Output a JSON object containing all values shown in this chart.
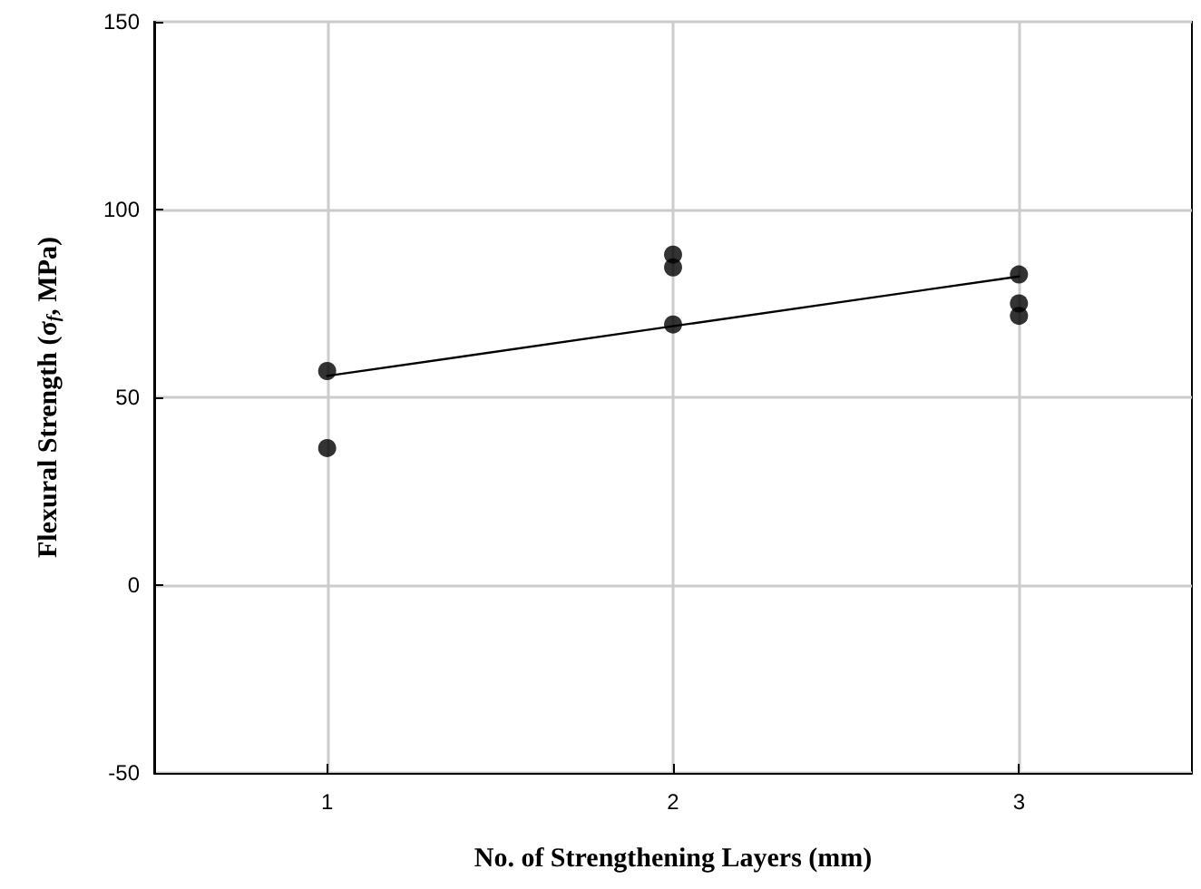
{
  "chart_data": {
    "type": "scatter",
    "xlabel": "No. of Strengthening Layers (mm)",
    "ylabel": "Flexural Strength (σ$_{f}$, MPa)",
    "xlim": [
      0.5,
      3.5
    ],
    "xticks": [
      1,
      2,
      3
    ],
    "ylim": [
      -50,
      150
    ],
    "yticks": [
      -50,
      0,
      50,
      100,
      150
    ],
    "grid": true,
    "marker": "circle",
    "series": [
      {
        "color": "#000000",
        "x": [
          1,
          1,
          2,
          2,
          2,
          3,
          3,
          3
        ],
        "values": [
          57,
          36.5,
          88,
          84.6,
          69.4,
          82.7,
          75,
          71.7
        ]
      },
      {
        "type": "line",
        "color": "#000000",
        "marker": "none",
        "x": [
          1,
          3
        ],
        "values": [
          55.7,
          82.2
        ]
      }
    ]
  }
}
